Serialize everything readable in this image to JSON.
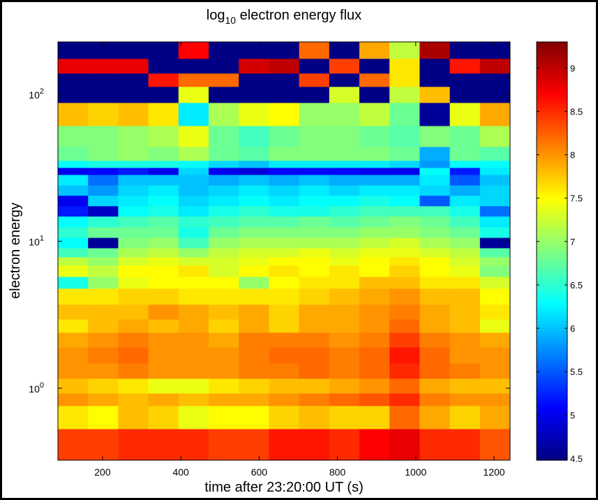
{
  "chart_data": {
    "type": "heatmap",
    "title": [
      "log",
      "10",
      " electron energy flux"
    ],
    "x_label": "time after 23:20:00 UT (s)",
    "y_label": "electron energy",
    "xbins": [
      86,
      163,
      240,
      317,
      394,
      471,
      548,
      625,
      702,
      779,
      856,
      933,
      1010,
      1087,
      1164,
      1241
    ],
    "ybins": [
      0.324,
      0.53,
      0.761,
      0.926,
      1.166,
      1.483,
      1.906,
      2.4,
      2.95,
      3.72,
      4.78,
      5.75,
      6.86,
      7.82,
      9.01,
      10.6,
      12.5,
      14.8,
      17.4,
      20.5,
      24.1,
      28.4,
      31.7,
      35.4,
      44.0,
      61.1,
      87.7,
      112.8,
      139,
      175,
      227
    ],
    "xlim": [
      86,
      1241
    ],
    "ylim": [
      0.324,
      227
    ],
    "ylog": true,
    "xticks": [
      200,
      400,
      600,
      800,
      1000,
      1200
    ],
    "yticks": [
      {
        "value": 1,
        "label": [
          "10",
          "0"
        ]
      },
      {
        "value": 10,
        "label": [
          "10",
          "1"
        ]
      },
      {
        "value": 100,
        "label": [
          "10",
          "2"
        ]
      }
    ],
    "colormap": "jet",
    "clim": [
      4.48,
      9.3
    ],
    "cticks": [
      4.5,
      5,
      5.5,
      6,
      6.5,
      7,
      7.5,
      8,
      8.5,
      9
    ],
    "z": [
      [
        8.4,
        8.4,
        8.5,
        8.5,
        8.5,
        8.4,
        8.4,
        8.6,
        8.6,
        8.5,
        8.7,
        8.8,
        8.5,
        8.5,
        8.3
      ],
      [
        7.6,
        7.5,
        7.8,
        7.7,
        7.4,
        7.5,
        7.5,
        7.7,
        7.8,
        7.7,
        7.7,
        8.2,
        7.9,
        7.7,
        7.9
      ],
      [
        8.0,
        7.9,
        7.8,
        7.9,
        7.8,
        7.9,
        7.9,
        8.0,
        8.1,
        8.2,
        8.3,
        8.5,
        8.1,
        8.0,
        8.0
      ],
      [
        7.8,
        7.7,
        7.6,
        7.4,
        7.4,
        7.6,
        7.7,
        7.8,
        7.8,
        7.9,
        8.0,
        8.2,
        7.9,
        7.8,
        7.8
      ],
      [
        8.0,
        8.0,
        8.1,
        8.0,
        8.0,
        8.0,
        8.1,
        8.1,
        8.2,
        8.1,
        8.2,
        8.5,
        8.2,
        8.1,
        8.0
      ],
      [
        8.0,
        8.1,
        8.2,
        8.0,
        8.0,
        8.0,
        8.1,
        8.2,
        8.2,
        8.1,
        8.2,
        8.6,
        8.2,
        8.0,
        8.0
      ],
      [
        7.9,
        8.0,
        8.1,
        8.0,
        8.0,
        7.9,
        8.1,
        8.1,
        8.1,
        8.0,
        8.1,
        8.4,
        8.1,
        8.0,
        7.9
      ],
      [
        7.6,
        7.8,
        7.9,
        7.8,
        7.9,
        7.7,
        7.9,
        7.7,
        7.9,
        7.9,
        8.0,
        8.2,
        7.9,
        7.8,
        7.4
      ],
      [
        7.8,
        7.8,
        7.8,
        8.0,
        7.9,
        7.8,
        7.9,
        7.7,
        7.9,
        7.9,
        8.0,
        8.1,
        7.9,
        7.8,
        7.6
      ],
      [
        7.6,
        7.6,
        7.7,
        7.7,
        7.6,
        7.6,
        7.6,
        7.6,
        7.7,
        7.8,
        7.9,
        8.0,
        7.8,
        7.8,
        7.5
      ],
      [
        6.4,
        7.0,
        7.4,
        7.5,
        7.5,
        7.5,
        7.0,
        7.5,
        7.6,
        7.6,
        7.8,
        7.8,
        7.6,
        7.6,
        7.3
      ],
      [
        7.4,
        7.2,
        7.5,
        7.5,
        7.6,
        7.3,
        7.5,
        7.6,
        7.5,
        7.6,
        7.5,
        7.7,
        7.5,
        7.4,
        6.9
      ],
      [
        7.2,
        7.0,
        7.3,
        7.4,
        7.3,
        7.3,
        7.4,
        7.5,
        7.5,
        7.4,
        7.5,
        7.6,
        7.5,
        7.3,
        7.0
      ],
      [
        6.6,
        6.8,
        7.1,
        7.2,
        7.0,
        7.2,
        7.3,
        7.3,
        7.4,
        7.3,
        7.4,
        7.4,
        7.3,
        7.2,
        6.7
      ],
      [
        6.3,
        4.6,
        6.9,
        7.0,
        6.6,
        7.0,
        7.1,
        7.1,
        7.1,
        7.1,
        7.2,
        7.3,
        7.1,
        7.0,
        4.6
      ],
      [
        6.5,
        6.8,
        6.8,
        6.8,
        6.4,
        6.8,
        6.9,
        6.9,
        6.9,
        6.9,
        7.0,
        7.0,
        6.9,
        6.8,
        6.4
      ],
      [
        6.3,
        6.5,
        6.6,
        6.7,
        6.5,
        6.6,
        6.7,
        6.7,
        6.8,
        6.7,
        6.8,
        6.9,
        6.8,
        6.6,
        6.2
      ],
      [
        5.2,
        4.8,
        6.3,
        6.4,
        6.2,
        6.4,
        6.5,
        6.4,
        6.4,
        6.5,
        6.6,
        6.6,
        6.6,
        6.4,
        5.6
      ],
      [
        5.0,
        6.1,
        6.2,
        6.3,
        6.1,
        6.2,
        6.3,
        6.2,
        6.3,
        6.3,
        6.4,
        6.3,
        5.5,
        6.2,
        6.1
      ],
      [
        6.0,
        5.8,
        6.1,
        6.2,
        6.0,
        6.1,
        6.2,
        6.1,
        6.2,
        6.1,
        6.2,
        6.2,
        6.1,
        5.9,
        6.1
      ],
      [
        6.2,
        5.6,
        6.0,
        6.0,
        6.0,
        5.9,
        6.0,
        5.9,
        6.0,
        5.9,
        5.9,
        5.9,
        6.2,
        5.5,
        6.0
      ],
      [
        5.0,
        5.1,
        5.2,
        5.0,
        6.1,
        5.0,
        4.9,
        5.1,
        5.1,
        5.1,
        5.0,
        5.0,
        6.3,
        5.2,
        6.2
      ],
      [
        6.3,
        6.4,
        6.4,
        6.4,
        6.3,
        6.1,
        6.0,
        6.2,
        6.2,
        6.2,
        6.2,
        6.1,
        5.8,
        6.3,
        6.3
      ],
      [
        6.8,
        6.9,
        7.0,
        6.9,
        7.1,
        6.8,
        6.7,
        6.9,
        6.9,
        6.9,
        6.9,
        6.8,
        5.9,
        6.8,
        6.7
      ],
      [
        6.9,
        6.9,
        7.0,
        7.1,
        7.4,
        6.8,
        6.6,
        6.8,
        6.9,
        6.9,
        6.8,
        6.7,
        6.9,
        6.8,
        7.1
      ],
      [
        7.8,
        7.7,
        7.8,
        7.6,
        6.2,
        7.1,
        7.4,
        7.5,
        7.0,
        7.0,
        7.2,
        6.8,
        4.6,
        7.4,
        7.9
      ],
      [
        4.5,
        4.5,
        4.5,
        4.5,
        7.4,
        4.5,
        4.5,
        4.5,
        4.5,
        7.3,
        4.5,
        7.2,
        7.8,
        4.5,
        4.5
      ],
      [
        4.5,
        4.5,
        4.5,
        8.6,
        8.2,
        8.2,
        4.5,
        4.5,
        8.4,
        4.5,
        8.2,
        7.6,
        4.5,
        4.5,
        4.5
      ],
      [
        8.8,
        8.8,
        8.8,
        4.5,
        4.5,
        4.5,
        8.9,
        9.0,
        4.5,
        8.4,
        4.5,
        7.6,
        4.5,
        8.6,
        9.0
      ],
      [
        4.5,
        4.5,
        4.5,
        4.5,
        8.7,
        4.5,
        4.5,
        4.5,
        8.2,
        4.5,
        7.9,
        7.2,
        9.1,
        4.5,
        4.5
      ]
    ]
  }
}
